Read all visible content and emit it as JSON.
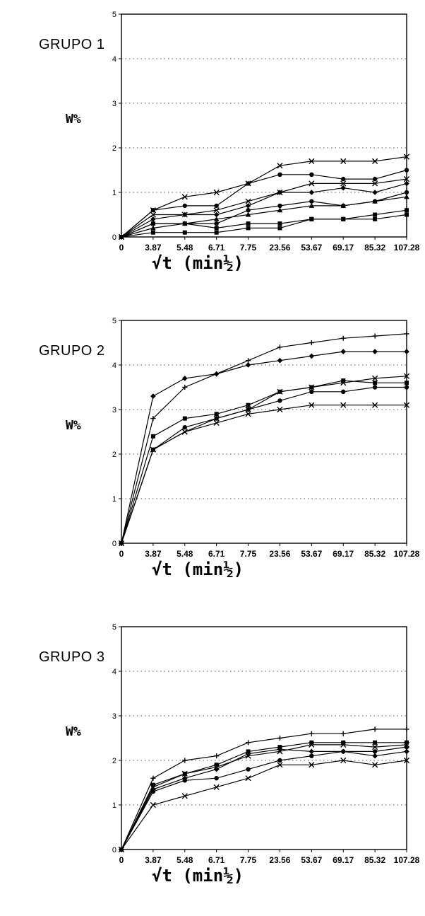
{
  "chart_data": [
    {
      "type": "line",
      "title": "GRUPO 1",
      "ylabel": "W%",
      "xlabel": "√t (min½)",
      "categories": [
        "0",
        "3.87",
        "5.48",
        "6.71",
        "7.75",
        "23.56",
        "53.67",
        "69.17",
        "85.32",
        "107.28"
      ],
      "ylim": [
        0,
        5
      ],
      "yticks": [
        "0",
        "1",
        "2",
        "3",
        "4",
        "5"
      ],
      "grid": "horizontal-dotted",
      "series": [
        {
          "marker": "x",
          "values": [
            0,
            0.6,
            0.9,
            1.0,
            1.2,
            1.6,
            1.7,
            1.7,
            1.7,
            1.8
          ]
        },
        {
          "marker": "dot",
          "values": [
            0,
            0.6,
            0.7,
            0.7,
            1.2,
            1.4,
            1.4,
            1.3,
            1.3,
            1.5
          ]
        },
        {
          "marker": "x",
          "values": [
            0,
            0.5,
            0.5,
            0.6,
            0.8,
            1.0,
            1.2,
            1.2,
            1.2,
            1.3
          ]
        },
        {
          "marker": "diamond",
          "values": [
            0,
            0.4,
            0.5,
            0.5,
            0.7,
            1.0,
            1.0,
            1.1,
            1.0,
            1.2
          ]
        },
        {
          "marker": "dot",
          "values": [
            0,
            0.3,
            0.3,
            0.3,
            0.6,
            0.7,
            0.8,
            0.7,
            0.8,
            1.0
          ]
        },
        {
          "marker": "triangle",
          "values": [
            0,
            0.2,
            0.3,
            0.4,
            0.5,
            0.6,
            0.7,
            0.7,
            0.8,
            0.9
          ]
        },
        {
          "marker": "square",
          "values": [
            0,
            0.3,
            0.3,
            0.2,
            0.3,
            0.3,
            0.4,
            0.4,
            0.5,
            0.6
          ]
        },
        {
          "marker": "square",
          "values": [
            0,
            0.1,
            0.1,
            0.1,
            0.2,
            0.2,
            0.4,
            0.4,
            0.4,
            0.5
          ]
        }
      ]
    },
    {
      "type": "line",
      "title": "GRUPO 2",
      "ylabel": "W%",
      "xlabel": "√t (min½)",
      "categories": [
        "0",
        "3.87",
        "5.48",
        "6.71",
        "7.75",
        "23.56",
        "53.67",
        "69.17",
        "85.32",
        "107.28"
      ],
      "ylim": [
        0,
        5
      ],
      "yticks": [
        "0",
        "1",
        "2",
        "3",
        "4",
        "5"
      ],
      "grid": "horizontal-dotted",
      "series": [
        {
          "marker": "plus",
          "values": [
            0,
            2.8,
            3.5,
            3.8,
            4.1,
            4.4,
            4.5,
            4.6,
            4.65,
            4.7
          ]
        },
        {
          "marker": "diamond",
          "values": [
            0,
            3.3,
            3.7,
            3.8,
            4.0,
            4.1,
            4.2,
            4.3,
            4.3,
            4.3
          ]
        },
        {
          "marker": "x",
          "values": [
            0,
            2.1,
            2.5,
            2.8,
            3.0,
            3.4,
            3.5,
            3.6,
            3.7,
            3.75
          ]
        },
        {
          "marker": "square",
          "values": [
            0,
            2.4,
            2.8,
            2.9,
            3.1,
            3.4,
            3.5,
            3.65,
            3.6,
            3.6
          ]
        },
        {
          "marker": "dot",
          "values": [
            0,
            2.1,
            2.6,
            2.8,
            3.0,
            3.2,
            3.4,
            3.4,
            3.5,
            3.5
          ]
        },
        {
          "marker": "x",
          "values": [
            0,
            2.1,
            2.5,
            2.7,
            2.9,
            3.0,
            3.1,
            3.1,
            3.1,
            3.1
          ]
        }
      ]
    },
    {
      "type": "line",
      "title": "GRUPO 3",
      "ylabel": "W%",
      "xlabel": "√t (min½)",
      "categories": [
        "0",
        "3.87",
        "5.48",
        "6.71",
        "7.75",
        "23.56",
        "53.67",
        "69.17",
        "85.32",
        "107.28"
      ],
      "ylim": [
        0,
        5
      ],
      "yticks": [
        "0",
        "1",
        "2",
        "3",
        "4",
        "5"
      ],
      "grid": "horizontal-dotted",
      "series": [
        {
          "marker": "plus",
          "values": [
            0,
            1.6,
            2.0,
            2.1,
            2.4,
            2.5,
            2.6,
            2.6,
            2.7,
            2.7
          ]
        },
        {
          "marker": "square",
          "values": [
            0,
            1.45,
            1.7,
            1.9,
            2.2,
            2.3,
            2.4,
            2.4,
            2.4,
            2.4
          ]
        },
        {
          "marker": "x",
          "values": [
            0,
            1.4,
            1.7,
            1.85,
            2.1,
            2.2,
            2.35,
            2.35,
            2.3,
            2.35
          ]
        },
        {
          "marker": "diamond",
          "values": [
            0,
            1.35,
            1.6,
            1.8,
            2.15,
            2.25,
            2.2,
            2.2,
            2.1,
            2.2
          ]
        },
        {
          "marker": "dot",
          "values": [
            0,
            1.3,
            1.55,
            1.6,
            1.8,
            2.0,
            2.1,
            2.2,
            2.2,
            2.3
          ]
        },
        {
          "marker": "x",
          "values": [
            0,
            1.0,
            1.2,
            1.4,
            1.6,
            1.9,
            1.9,
            2.0,
            1.9,
            2.0
          ]
        }
      ]
    }
  ]
}
